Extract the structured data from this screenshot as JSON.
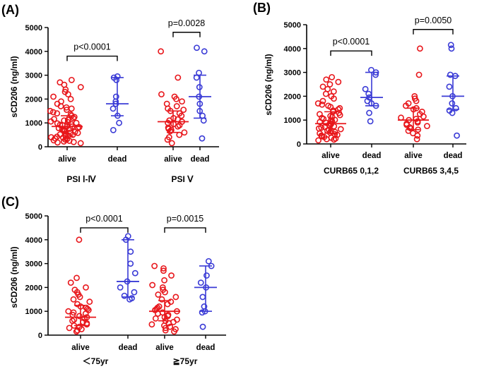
{
  "colors": {
    "alive": "#e8161b",
    "dead": "#3a3bd6",
    "axis": "#000000"
  },
  "chart_data": [
    {
      "type": "scatter",
      "panel_label": "(A)",
      "ylabel": "sCD206 (ng/ml)",
      "ylim": [
        0,
        5000
      ],
      "yticks": [
        0,
        1000,
        2000,
        3000,
        4000,
        5000
      ],
      "group_labels": [
        "alive",
        "dead",
        "alive",
        "dead"
      ],
      "category_labels": [
        "PSI Ⅰ-Ⅳ",
        "PSI Ⅴ"
      ],
      "comparisons": [
        {
          "label": "p<0.0001",
          "between": [
            0,
            1
          ],
          "y": 3800
        },
        {
          "label": "p=0.0028",
          "between": [
            2,
            3
          ],
          "y": 4800
        }
      ],
      "series": [
        {
          "name": "alive",
          "status": "alive",
          "median": 850,
          "q1": 450,
          "q3": 1300,
          "values": [
            150,
            180,
            200,
            220,
            250,
            270,
            300,
            320,
            350,
            380,
            400,
            420,
            450,
            470,
            500,
            520,
            550,
            580,
            600,
            620,
            650,
            680,
            700,
            720,
            750,
            780,
            800,
            820,
            850,
            870,
            900,
            920,
            950,
            980,
            1000,
            1030,
            1060,
            1100,
            1130,
            1160,
            1200,
            1250,
            1300,
            1350,
            1400,
            1450,
            1500,
            1550,
            1600,
            1650,
            1700,
            1800,
            1900,
            2000,
            2100,
            2200,
            2300,
            2400,
            2500,
            2600,
            2700,
            2800
          ]
        },
        {
          "name": "dead",
          "status": "dead",
          "median": 1800,
          "q1": 1300,
          "q3": 2900,
          "values": [
            700,
            1000,
            1300,
            1600,
            1800,
            1900,
            2100,
            2800,
            2900,
            2950
          ]
        },
        {
          "name": "alive",
          "status": "alive",
          "median": 1050,
          "q1": 600,
          "q3": 1500,
          "values": [
            150,
            300,
            400,
            500,
            600,
            650,
            700,
            750,
            800,
            850,
            900,
            950,
            1000,
            1050,
            1100,
            1150,
            1200,
            1300,
            1400,
            1500,
            1550,
            1600,
            1700,
            1800,
            1900,
            2000,
            2100,
            2200,
            2900,
            4000
          ]
        },
        {
          "name": "dead",
          "status": "dead",
          "median": 2100,
          "q1": 1200,
          "q3": 3000,
          "values": [
            350,
            1100,
            1300,
            1500,
            1800,
            2100,
            2500,
            2900,
            3100,
            4000,
            4150
          ]
        }
      ]
    },
    {
      "type": "scatter",
      "panel_label": "(B)",
      "ylabel": "sCD206 (ng/ml)",
      "ylim": [
        0,
        5000
      ],
      "yticks": [
        0,
        1000,
        2000,
        3000,
        4000,
        5000
      ],
      "group_labels": [
        "alive",
        "dead",
        "alive",
        "dead"
      ],
      "category_labels": [
        "CURB65 0,1,2",
        "CURB65 3,4,5"
      ],
      "comparisons": [
        {
          "label": "p<0.0001",
          "between": [
            0,
            1
          ],
          "y": 3900
        },
        {
          "label": "p=0.0050",
          "between": [
            2,
            3
          ],
          "y": 4800
        }
      ],
      "series": [
        {
          "name": "alive",
          "status": "alive",
          "median": 850,
          "q1": 450,
          "q3": 1350,
          "values": [
            150,
            180,
            200,
            230,
            260,
            290,
            320,
            350,
            380,
            410,
            440,
            470,
            500,
            530,
            560,
            590,
            620,
            650,
            680,
            710,
            740,
            770,
            800,
            830,
            860,
            890,
            920,
            950,
            980,
            1010,
            1050,
            1090,
            1130,
            1170,
            1210,
            1250,
            1300,
            1350,
            1400,
            1450,
            1500,
            1550,
            1600,
            1650,
            1700,
            1800,
            1900,
            2000,
            2100,
            2200,
            2300,
            2400,
            2500,
            2600,
            2700,
            2800
          ]
        },
        {
          "name": "dead",
          "status": "dead",
          "median": 1950,
          "q1": 1600,
          "q3": 3000,
          "values": [
            950,
            1300,
            1600,
            1700,
            1800,
            1950,
            2100,
            2300,
            2900,
            3000,
            3100
          ]
        },
        {
          "name": "alive",
          "status": "alive",
          "median": 1000,
          "q1": 600,
          "q3": 1500,
          "values": [
            200,
            350,
            450,
            550,
            600,
            650,
            700,
            750,
            800,
            850,
            900,
            950,
            1000,
            1050,
            1100,
            1150,
            1250,
            1350,
            1450,
            1500,
            1600,
            1700,
            1800,
            1900,
            2000,
            2900,
            4000
          ]
        },
        {
          "name": "dead",
          "status": "dead",
          "median": 2000,
          "q1": 1450,
          "q3": 2850,
          "values": [
            350,
            1300,
            1400,
            1500,
            1700,
            2000,
            2400,
            2850,
            2900,
            4000,
            4150
          ]
        }
      ]
    },
    {
      "type": "scatter",
      "panel_label": "(C)",
      "ylabel": "sCD206 (ng/ml)",
      "ylim": [
        0,
        5000
      ],
      "yticks": [
        0,
        1000,
        2000,
        3000,
        4000,
        5000
      ],
      "group_labels": [
        "alive",
        "dead",
        "alive",
        "dead"
      ],
      "category_labels": [
        "＜75yr",
        "≧75yr"
      ],
      "comparisons": [
        {
          "label": "p<0.0001",
          "between": [
            0,
            1
          ],
          "y": 4500
        },
        {
          "label": "p=0.0015",
          "between": [
            2,
            3
          ],
          "y": 4500
        }
      ],
      "series": [
        {
          "name": "alive",
          "status": "alive",
          "median": 750,
          "q1": 400,
          "q3": 1250,
          "values": [
            150,
            200,
            250,
            300,
            350,
            400,
            450,
            500,
            550,
            600,
            650,
            700,
            750,
            800,
            850,
            900,
            950,
            1000,
            1050,
            1100,
            1150,
            1200,
            1300,
            1400,
            1500,
            1600,
            1700,
            1800,
            1900,
            2000,
            2200,
            2400,
            4000
          ]
        },
        {
          "name": "dead",
          "status": "dead",
          "median": 2250,
          "q1": 1600,
          "q3": 4000,
          "values": [
            1500,
            1550,
            1650,
            1800,
            2000,
            2250,
            2600,
            3000,
            3500,
            4000,
            4150
          ]
        },
        {
          "name": "alive",
          "status": "alive",
          "median": 1000,
          "q1": 600,
          "q3": 1450,
          "values": [
            150,
            200,
            250,
            300,
            350,
            400,
            450,
            500,
            550,
            600,
            650,
            700,
            750,
            800,
            850,
            900,
            950,
            1000,
            1050,
            1100,
            1150,
            1200,
            1300,
            1400,
            1500,
            1600,
            1700,
            1800,
            1900,
            2000,
            2100,
            2300,
            2500,
            2700,
            2800,
            2900
          ]
        },
        {
          "name": "dead",
          "status": "dead",
          "median": 2000,
          "q1": 1000,
          "q3": 2900,
          "values": [
            350,
            950,
            1000,
            1200,
            1600,
            2000,
            2200,
            2500,
            2900,
            3100
          ]
        }
      ]
    }
  ]
}
